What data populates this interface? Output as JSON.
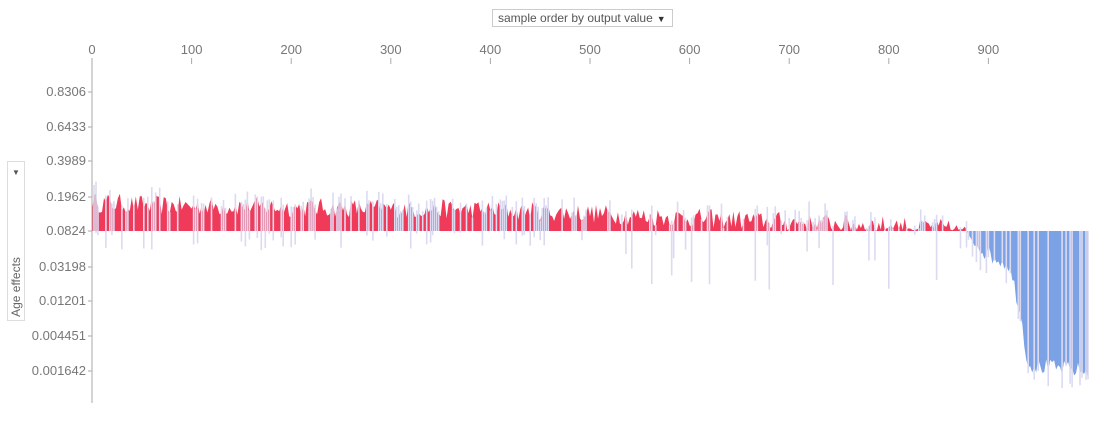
{
  "ordering_select": {
    "label": "sample order by output value",
    "caret": "▼"
  },
  "y_select": {
    "label": "Age effects",
    "caret": "▼"
  },
  "colors": {
    "positive": "#ef3a5a",
    "negative": "#7aa2e5",
    "outline": "#dcdaf0",
    "axis": "#aaaaaa",
    "tick_text": "#777777"
  },
  "chart_data": {
    "type": "area",
    "title": "",
    "xlabel": "",
    "ylabel": "Age effects",
    "xlim": [
      0,
      1000
    ],
    "x_ticks": [
      0,
      100,
      200,
      300,
      400,
      500,
      600,
      700,
      800,
      900
    ],
    "y_ticks": [
      "0.8306",
      "0.6433",
      "0.3989",
      "0.1962",
      "0.0824",
      "0.03198",
      "0.01201",
      "0.004451",
      "0.001642"
    ],
    "baseline": "0.0824",
    "samples": 1000,
    "segments": [
      {
        "x": [
          0,
          880
        ],
        "color": "positive",
        "description": "values mostly between 0.0824 and 0.1962, spiky above baseline"
      },
      {
        "x": [
          880,
          1000
        ],
        "color": "negative",
        "description": "values below 0.0824, falling to around 0.001642 after x≈940"
      }
    ],
    "envelope": {
      "x": [
        0,
        50,
        100,
        150,
        200,
        250,
        300,
        350,
        400,
        450,
        500,
        550,
        600,
        650,
        700,
        750,
        800,
        850,
        880,
        900,
        920,
        930,
        940,
        960,
        980,
        1000
      ],
      "y": [
        0.17,
        0.16,
        0.155,
        0.155,
        0.15,
        0.15,
        0.145,
        0.145,
        0.14,
        0.135,
        0.13,
        0.12,
        0.115,
        0.11,
        0.105,
        0.1,
        0.095,
        0.09,
        0.075,
        0.045,
        0.035,
        0.012,
        0.002,
        0.0018,
        0.0017,
        0.0016
      ]
    }
  }
}
